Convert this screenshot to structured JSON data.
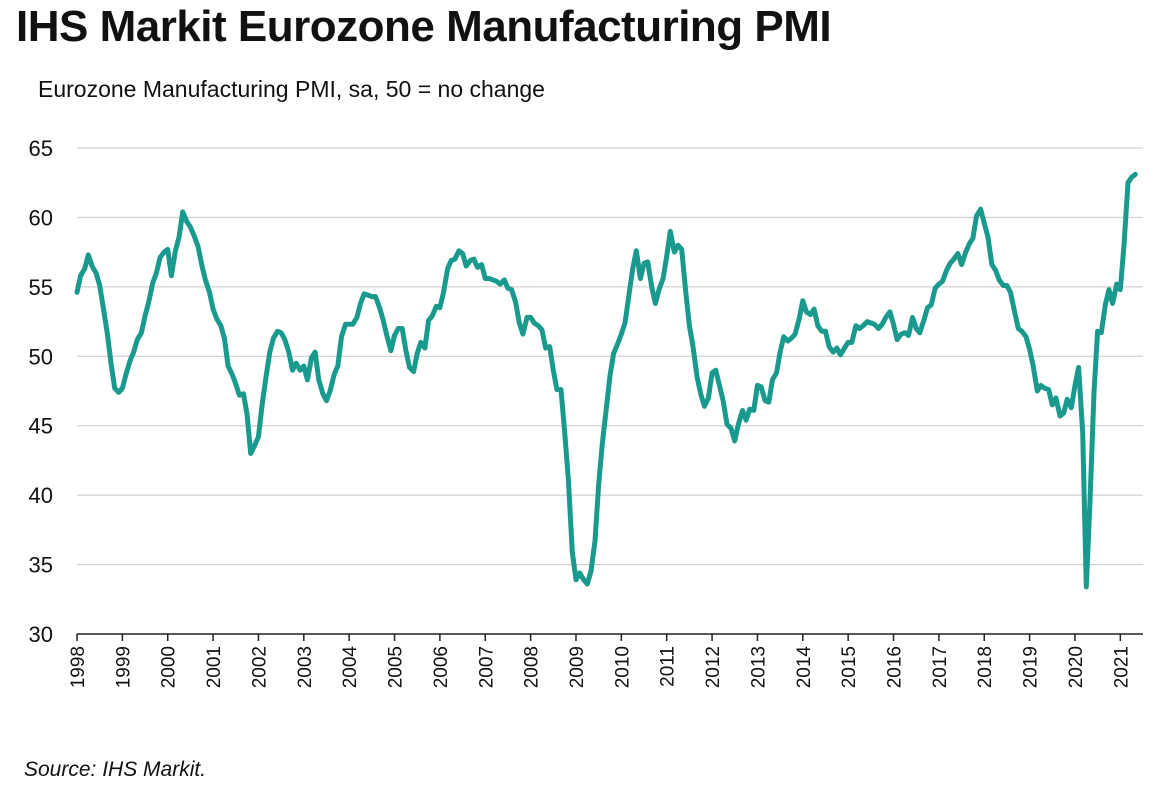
{
  "header": {
    "title": "IHS Markit Eurozone Manufacturing PMI",
    "subtitle": "Eurozone Manufacturing PMI, sa, 50 = no change"
  },
  "footer": {
    "source": "Source: IHS Markit."
  },
  "colors": {
    "series": "#1a9a8e",
    "grid": "#c8c8c8",
    "axis": "#222222"
  },
  "chart_data": {
    "type": "line",
    "title": "IHS Markit Eurozone Manufacturing PMI",
    "subtitle": "Eurozone Manufacturing PMI, sa, 50 = no change",
    "ylim": [
      30,
      65
    ],
    "yticks": [
      30,
      35,
      40,
      45,
      50,
      55,
      60,
      65
    ],
    "xlim": [
      1998.0,
      2021.4
    ],
    "xticks": [
      "1998",
      "1999",
      "2000",
      "2001",
      "2002",
      "2003",
      "2004",
      "2005",
      "2006",
      "2007",
      "2008",
      "2009",
      "2010",
      "2011",
      "2012",
      "2013",
      "2014",
      "2015",
      "2016",
      "2017",
      "2018",
      "2019",
      "2020",
      "2021"
    ],
    "grid": "horizontal",
    "series": [
      {
        "color": "#1a9a8e",
        "x": [
          1998.0,
          1998.08,
          1998.17,
          1998.25,
          1998.33,
          1998.42,
          1998.5,
          1998.58,
          1998.67,
          1998.75,
          1998.83,
          1998.92,
          1999.0,
          1999.08,
          1999.17,
          1999.25,
          1999.33,
          1999.42,
          1999.5,
          1999.58,
          1999.67,
          1999.75,
          1999.83,
          1999.92,
          2000.0,
          2000.08,
          2000.17,
          2000.25,
          2000.33,
          2000.42,
          2000.5,
          2000.58,
          2000.67,
          2000.75,
          2000.83,
          2000.92,
          2001.0,
          2001.08,
          2001.17,
          2001.25,
          2001.33,
          2001.42,
          2001.5,
          2001.58,
          2001.67,
          2001.75,
          2001.83,
          2001.92,
          2002.0,
          2002.08,
          2002.17,
          2002.25,
          2002.33,
          2002.42,
          2002.5,
          2002.58,
          2002.67,
          2002.75,
          2002.83,
          2002.92,
          2003.0,
          2003.08,
          2003.17,
          2003.25,
          2003.33,
          2003.42,
          2003.5,
          2003.58,
          2003.67,
          2003.75,
          2003.83,
          2003.92,
          2004.0,
          2004.08,
          2004.17,
          2004.25,
          2004.33,
          2004.42,
          2004.5,
          2004.58,
          2004.67,
          2004.75,
          2004.83,
          2004.92,
          2005.0,
          2005.08,
          2005.17,
          2005.25,
          2005.33,
          2005.42,
          2005.5,
          2005.58,
          2005.67,
          2005.75,
          2005.83,
          2005.92,
          2006.0,
          2006.08,
          2006.17,
          2006.25,
          2006.33,
          2006.42,
          2006.5,
          2006.58,
          2006.67,
          2006.75,
          2006.83,
          2006.92,
          2007.0,
          2007.08,
          2007.17,
          2007.25,
          2007.33,
          2007.42,
          2007.5,
          2007.58,
          2007.67,
          2007.75,
          2007.83,
          2007.92,
          2008.0,
          2008.08,
          2008.17,
          2008.25,
          2008.33,
          2008.42,
          2008.5,
          2008.58,
          2008.67,
          2008.75,
          2008.83,
          2008.92,
          2009.0,
          2009.08,
          2009.17,
          2009.25,
          2009.33,
          2009.42,
          2009.5,
          2009.58,
          2009.67,
          2009.75,
          2009.83,
          2009.92,
          2010.0,
          2010.08,
          2010.17,
          2010.25,
          2010.33,
          2010.42,
          2010.5,
          2010.58,
          2010.67,
          2010.75,
          2010.83,
          2010.92,
          2011.0,
          2011.08,
          2011.17,
          2011.25,
          2011.33,
          2011.42,
          2011.5,
          2011.58,
          2011.67,
          2011.75,
          2011.83,
          2011.92,
          2012.0,
          2012.08,
          2012.17,
          2012.25,
          2012.33,
          2012.42,
          2012.5,
          2012.58,
          2012.67,
          2012.75,
          2012.83,
          2012.92,
          2013.0,
          2013.08,
          2013.17,
          2013.25,
          2013.33,
          2013.42,
          2013.5,
          2013.58,
          2013.67,
          2013.75,
          2013.83,
          2013.92,
          2014.0,
          2014.08,
          2014.17,
          2014.25,
          2014.33,
          2014.42,
          2014.5,
          2014.58,
          2014.67,
          2014.75,
          2014.83,
          2014.92,
          2015.0,
          2015.08,
          2015.17,
          2015.25,
          2015.33,
          2015.42,
          2015.5,
          2015.58,
          2015.67,
          2015.75,
          2015.83,
          2015.92,
          2016.0,
          2016.08,
          2016.17,
          2016.25,
          2016.33,
          2016.42,
          2016.5,
          2016.58,
          2016.67,
          2016.75,
          2016.83,
          2016.92,
          2017.0,
          2017.08,
          2017.17,
          2017.25,
          2017.33,
          2017.42,
          2017.5,
          2017.58,
          2017.67,
          2017.75,
          2017.83,
          2017.92,
          2018.0,
          2018.08,
          2018.17,
          2018.25,
          2018.33,
          2018.42,
          2018.5,
          2018.58,
          2018.67,
          2018.75,
          2018.83,
          2018.92,
          2019.0,
          2019.08,
          2019.17,
          2019.25,
          2019.33,
          2019.42,
          2019.5,
          2019.58,
          2019.67,
          2019.75,
          2019.83,
          2019.92,
          2020.0,
          2020.08,
          2020.17,
          2020.25,
          2020.33,
          2020.42,
          2020.5,
          2020.58,
          2020.67,
          2020.75,
          2020.83,
          2020.92,
          2021.0,
          2021.08,
          2021.17,
          2021.25,
          2021.33
        ],
        "y": [
          54.6,
          55.8,
          56.3,
          57.3,
          56.5,
          56.0,
          55.1,
          53.5,
          51.6,
          49.5,
          47.7,
          47.4,
          47.7,
          48.7,
          49.7,
          50.3,
          51.2,
          51.7,
          52.9,
          53.9,
          55.3,
          56.0,
          57.1,
          57.5,
          57.7,
          55.8,
          57.6,
          58.6,
          60.4,
          59.7,
          59.3,
          58.7,
          57.9,
          56.6,
          55.5,
          54.6,
          53.4,
          52.7,
          52.2,
          51.3,
          49.3,
          48.7,
          48.0,
          47.2,
          47.3,
          45.8,
          43.0,
          43.6,
          44.2,
          46.5,
          48.6,
          50.3,
          51.3,
          51.8,
          51.7,
          51.2,
          50.3,
          49.0,
          49.5,
          49.0,
          49.3,
          48.3,
          49.9,
          50.3,
          48.3,
          47.3,
          46.8,
          47.5,
          48.7,
          49.3,
          51.4,
          52.3,
          52.3,
          52.3,
          52.8,
          53.8,
          54.5,
          54.4,
          54.3,
          54.3,
          53.5,
          52.6,
          51.5,
          50.4,
          51.5,
          52.0,
          52.0,
          50.4,
          49.2,
          48.9,
          50.2,
          51.0,
          50.6,
          52.6,
          52.9,
          53.6,
          53.5,
          54.6,
          56.3,
          56.9,
          57.0,
          57.6,
          57.4,
          56.5,
          56.9,
          57.0,
          56.4,
          56.6,
          55.6,
          55.6,
          55.5,
          55.4,
          55.2,
          55.5,
          54.9,
          54.8,
          53.9,
          52.4,
          51.6,
          52.8,
          52.8,
          52.4,
          52.2,
          51.9,
          50.6,
          50.7,
          49.0,
          47.6,
          47.6,
          44.6,
          41.2,
          35.9,
          33.9,
          34.4,
          33.9,
          33.6,
          34.5,
          36.7,
          40.8,
          43.7,
          46.3,
          48.6,
          50.2,
          50.9,
          51.6,
          52.4,
          54.5,
          56.3,
          57.6,
          55.6,
          56.7,
          56.8,
          55.0,
          53.8,
          54.8,
          55.6,
          57.2,
          59.0,
          57.5,
          58.0,
          57.7,
          54.6,
          52.2,
          50.7,
          48.5,
          47.3,
          46.4,
          47.0,
          48.8,
          49.0,
          47.8,
          46.7,
          45.1,
          44.8,
          43.9,
          45.1,
          46.1,
          45.4,
          46.2,
          46.1,
          47.9,
          47.8,
          46.8,
          46.7,
          48.3,
          48.8,
          50.3,
          51.4,
          51.1,
          51.3,
          51.6,
          52.7,
          54.0,
          53.2,
          53.0,
          53.4,
          52.2,
          51.8,
          51.8,
          50.7,
          50.3,
          50.6,
          50.1,
          50.6,
          51.0,
          51.0,
          52.2,
          52.0,
          52.2,
          52.5,
          52.4,
          52.3,
          52.0,
          52.3,
          52.8,
          53.2,
          52.3,
          51.2,
          51.6,
          51.7,
          51.5,
          52.8,
          52.0,
          51.7,
          52.6,
          53.5,
          53.7,
          54.9,
          55.2,
          55.4,
          56.2,
          56.7,
          57.0,
          57.4,
          56.6,
          57.4,
          58.1,
          58.5,
          60.1,
          60.6,
          59.6,
          58.6,
          56.6,
          56.2,
          55.5,
          55.1,
          55.1,
          54.6,
          53.2,
          52.0,
          51.8,
          51.4,
          50.5,
          49.3,
          47.5,
          47.9,
          47.7,
          47.6,
          46.5,
          47.0,
          45.7,
          45.9,
          46.9,
          46.3,
          47.9,
          49.2,
          44.5,
          33.4,
          39.4,
          47.4,
          51.8,
          51.7,
          53.7,
          54.8,
          53.8,
          55.2,
          54.8,
          57.9,
          62.5,
          62.9,
          63.1
        ]
      }
    ]
  }
}
